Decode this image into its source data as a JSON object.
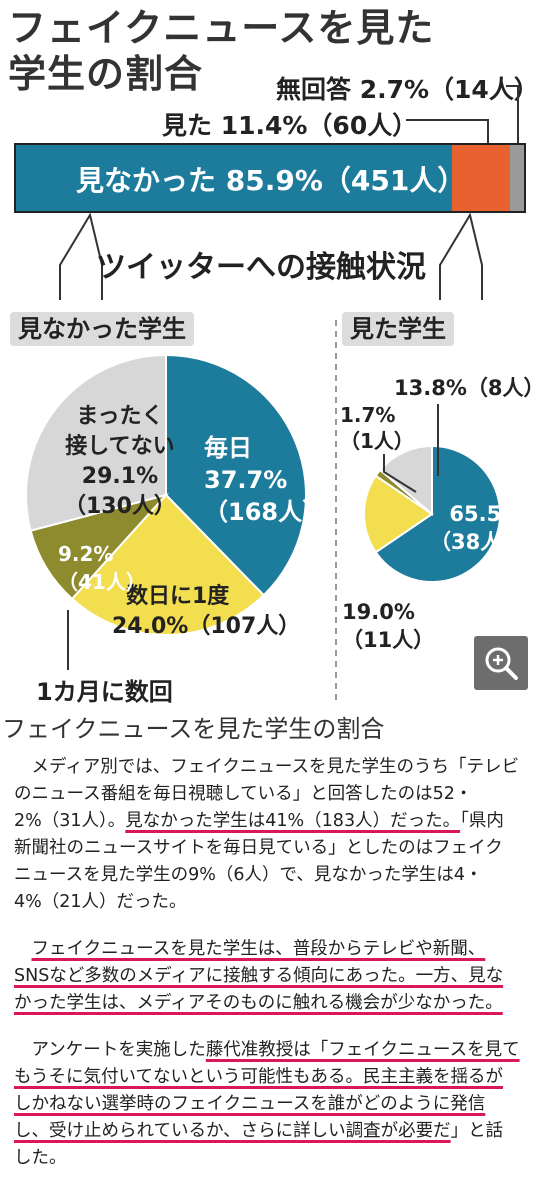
{
  "figure": {
    "title_line1": "フェイクニュースを見た",
    "title_line2": "学生の割合",
    "bar": {
      "label_no_answer": "無回答 2.7%（14人）",
      "label_saw": "見た 11.4%（60人）",
      "label_not_saw": "見なかった 85.9%（451人）",
      "values": [
        85.9,
        11.4,
        2.7
      ],
      "colors": [
        "#1d7b9c",
        "#e8622f",
        "#9a9a9a"
      ]
    },
    "subtitle": "ツイッターへの接触状況",
    "left_section": {
      "tag": "見なかった学生",
      "labels": {
        "daily_line1": "毎日",
        "daily_line2": "37.7%",
        "daily_line3": "（168人）",
        "few_days_line1": "数日に1度",
        "few_days_line2": "24.0%（107人）",
        "monthly_line1": "9.2%",
        "monthly_line2": "（41人）",
        "monthly_callout": "1カ月に数回",
        "never_line1": "まったく",
        "never_line2": "接してない",
        "never_line3": "29.1%",
        "never_line4": "（130人）"
      }
    },
    "right_section": {
      "tag": "見た学生",
      "labels": {
        "daily_line1": "65.5%",
        "daily_line2": "（38人）",
        "few_days_line1": "19.0%",
        "few_days_line2": "（11人）",
        "monthly_line1": "1.7%",
        "monthly_line2": "（1人）",
        "never": "13.8%（8人）"
      }
    },
    "colors": {
      "teal": "#1d7b9c",
      "yellow": "#f2de4e",
      "olive": "#8e8a2e",
      "gray": "#d7d7d7",
      "orange": "#e8622f"
    }
  },
  "chart_data": [
    {
      "type": "bar",
      "categories": [
        "見なかった",
        "見た",
        "無回答"
      ],
      "values": [
        85.9,
        11.4,
        2.7
      ],
      "counts": [
        451,
        60,
        14
      ],
      "title": "フェイクニュースを見た学生の割合"
    },
    {
      "type": "pie",
      "title": "見なかった学生",
      "categories": [
        "毎日",
        "数日に1度",
        "1カ月に数回",
        "まったく接してない"
      ],
      "values": [
        37.7,
        24.0,
        9.2,
        29.1
      ],
      "counts": [
        168,
        107,
        41,
        130
      ]
    },
    {
      "type": "pie",
      "title": "見た学生",
      "values": [
        65.5,
        19.0,
        1.7,
        13.8
      ],
      "counts": [
        38,
        11,
        1,
        8
      ]
    }
  ],
  "zoom_icon": "zoom-in-icon",
  "caption": "フェイクニュースを見た学生の割合",
  "article": {
    "p1_a": "メディア別では、フェイクニュースを見た学生のうち「テレビのニュース番組を毎日視聴している」と回答したのは52・2%（31人）。",
    "p1_b": "見なかった学生は41%（183人）だった。",
    "p1_c": "「県内新聞社のニュースサイトを毎日見ている」としたのはフェイクニュースを見た学生の9%（6人）で、見なかった学生は4・4%（21人）だった。",
    "p2_a": "フェイクニュースを見た学生は、普段からテレビや新聞、SNSなど多数のメディアに接触する傾向にあった。",
    "p2_b": "一方、見なかった学生は、メディアそのものに触れる機会が少なかった。",
    "p3_a": "アンケートを実施した",
    "p3_b": "藤代准教授は「フェイクニュースを見てもうそに気付いてないという可能性もある。民主主義を揺るがしかねない選挙時のフェイクニュースを誰がどのように発信し、受け止められているか、さらに詳しい調査が必要だ",
    "p3_c": "」と話した。"
  }
}
